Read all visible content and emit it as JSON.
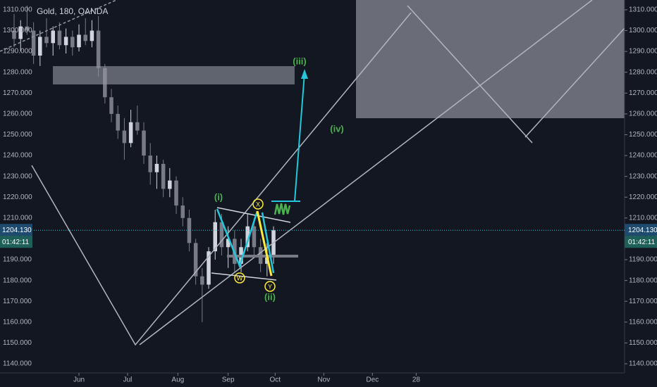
{
  "header": {
    "symbol": "Gold, 180, OANDA"
  },
  "chart_data": {
    "type": "candlestick",
    "x": [
      -40,
      -36,
      -32,
      -28,
      -24,
      -20,
      -16,
      -12,
      -8,
      -4,
      0,
      4,
      8,
      12,
      16,
      20,
      24,
      28,
      32,
      36,
      40,
      44,
      48,
      52,
      56,
      60,
      64,
      68,
      72,
      76,
      80,
      84,
      88,
      92,
      96,
      100,
      104,
      108,
      112,
      116,
      120
    ],
    "open": [
      1300,
      1296,
      1302,
      1300,
      1288,
      1297,
      1294,
      1300,
      1293,
      1297,
      1292,
      1298,
      1295,
      1300,
      1282,
      1268,
      1260,
      1252,
      1246,
      1256,
      1252,
      1240,
      1232,
      1236,
      1224,
      1228,
      1216,
      1210,
      1198,
      1182,
      1178,
      1194,
      1208,
      1196,
      1200,
      1188,
      1196,
      1206,
      1196,
      1188,
      1192
    ],
    "high": [
      1308,
      1305,
      1312,
      1304,
      1300,
      1306,
      1302,
      1304,
      1301,
      1300,
      1303,
      1306,
      1305,
      1307,
      1284,
      1272,
      1264,
      1258,
      1262,
      1264,
      1256,
      1246,
      1240,
      1238,
      1234,
      1230,
      1220,
      1214,
      1200,
      1186,
      1196,
      1214,
      1212,
      1206,
      1204,
      1200,
      1212,
      1210,
      1200,
      1198,
      1206
    ],
    "low": [
      1292,
      1290,
      1298,
      1284,
      1283,
      1292,
      1288,
      1291,
      1289,
      1288,
      1290,
      1293,
      1292,
      1278,
      1265,
      1256,
      1248,
      1238,
      1244,
      1250,
      1236,
      1226,
      1224,
      1220,
      1220,
      1212,
      1206,
      1194,
      1178,
      1160,
      1176,
      1190,
      1192,
      1186,
      1184,
      1184,
      1194,
      1192,
      1184,
      1182,
      1188
    ],
    "close": [
      1296,
      1302,
      1300,
      1288,
      1297,
      1294,
      1300,
      1293,
      1297,
      1292,
      1298,
      1295,
      1300,
      1282,
      1268,
      1260,
      1252,
      1246,
      1256,
      1252,
      1240,
      1232,
      1236,
      1224,
      1228,
      1216,
      1210,
      1198,
      1182,
      1178,
      1194,
      1208,
      1196,
      1200,
      1188,
      1196,
      1206,
      1196,
      1188,
      1192,
      1204.13
    ],
    "up_color": "#d1d4dc",
    "down_color": "#787b86",
    "xlim": [
      -48.7,
      336.5
    ],
    "xticks": [
      {
        "value": 0,
        "label": "Jun"
      },
      {
        "value": 30,
        "label": "Jul"
      },
      {
        "value": 61,
        "label": "Aug"
      },
      {
        "value": 92,
        "label": "Sep"
      },
      {
        "value": 121,
        "label": "Oct"
      },
      {
        "value": 151,
        "label": "Nov"
      },
      {
        "value": 181,
        "label": "Dec"
      },
      {
        "value": 208,
        "label": "28"
      }
    ],
    "ylim": [
      1314.7,
      1135.6
    ],
    "yticks": [
      {
        "value": 1140,
        "label": "1140.000"
      },
      {
        "value": 1150,
        "label": "1150.000"
      },
      {
        "value": 1160,
        "label": "1160.000"
      },
      {
        "value": 1170,
        "label": "1170.000"
      },
      {
        "value": 1180,
        "label": "1180.000"
      },
      {
        "value": 1190,
        "label": "1190.000"
      },
      {
        "value": 1200,
        "label": "1200.000"
      },
      {
        "value": 1210,
        "label": "1210.000"
      },
      {
        "value": 1220,
        "label": "1220.000"
      },
      {
        "value": 1230,
        "label": "1230.000"
      },
      {
        "value": 1240,
        "label": "1240.000"
      },
      {
        "value": 1250,
        "label": "1250.000"
      },
      {
        "value": 1260,
        "label": "1260.000"
      },
      {
        "value": 1270,
        "label": "1270.000"
      },
      {
        "value": 1280,
        "label": "1280.000"
      },
      {
        "value": 1290,
        "label": "1290.000"
      },
      {
        "value": 1300,
        "label": "1300.000"
      },
      {
        "value": 1310,
        "label": "1310.000"
      }
    ],
    "last_price": {
      "value": 1204.13,
      "label": "1204.130"
    },
    "countdown": "01:42:11"
  },
  "annotations": {
    "wave_i": "(i)",
    "wave_ii": "(ii)",
    "wave_iii": "(iii)",
    "wave_iv": "(iv)",
    "wave_w": "W",
    "wave_x": "X",
    "wave_y": "Y"
  }
}
